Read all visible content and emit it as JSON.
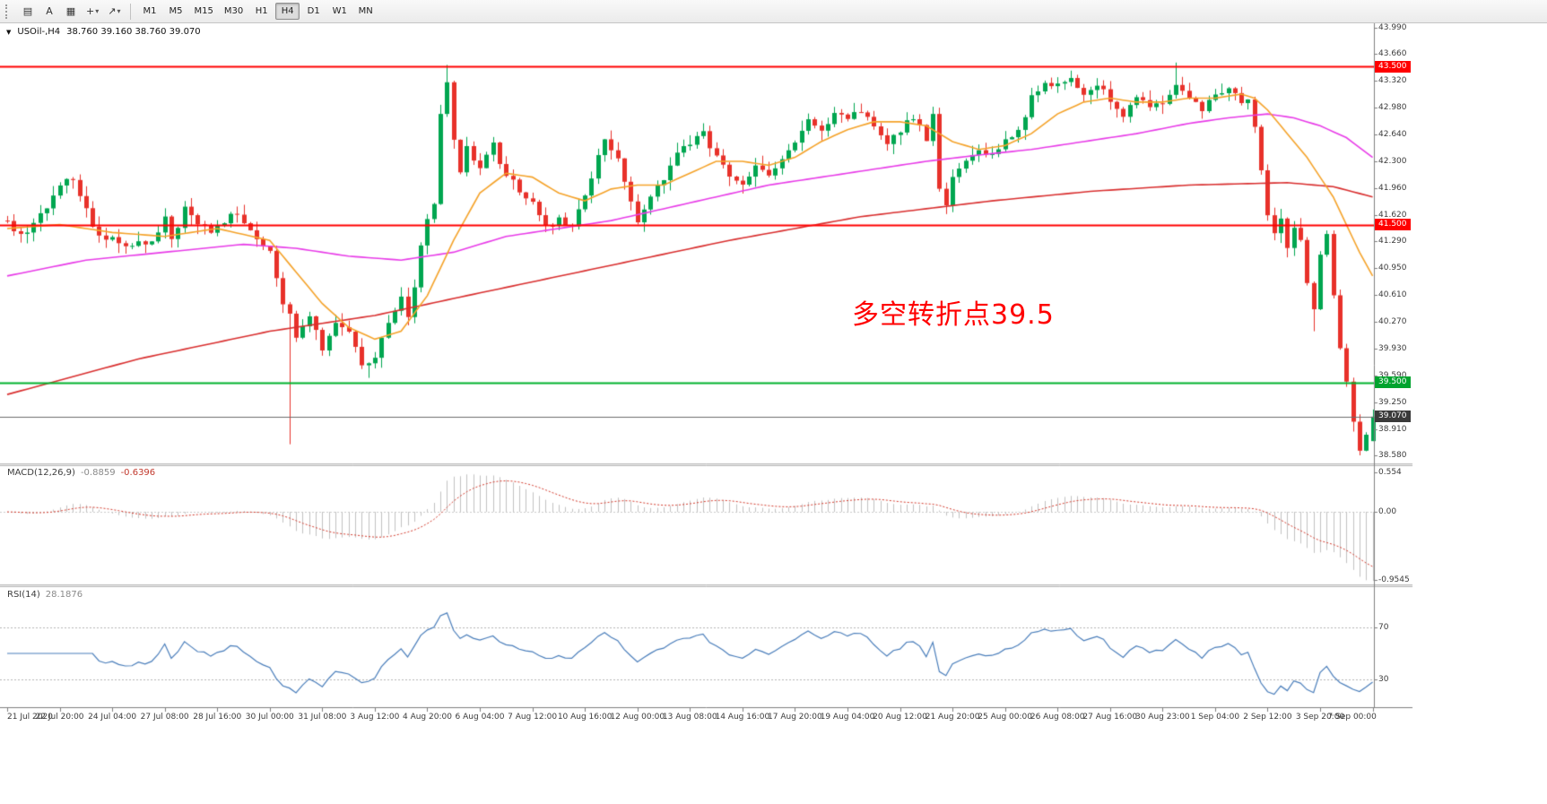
{
  "toolbar": {
    "dropdown_glyph": "▾",
    "tools": [
      {
        "name": "hatch-pattern-tool",
        "glyph": "▤",
        "dropdown": false
      },
      {
        "name": "text-tool",
        "glyph": "A",
        "dropdown": false
      },
      {
        "name": "object-list-tool",
        "glyph": "▦",
        "dropdown": false
      },
      {
        "name": "crosshair-tool",
        "glyph": "+",
        "dropdown": true
      },
      {
        "name": "trendline-tool",
        "glyph": "↗",
        "dropdown": true
      }
    ],
    "timeframes": [
      {
        "label": "M1",
        "active": false
      },
      {
        "label": "M5",
        "active": false
      },
      {
        "label": "M15",
        "active": false
      },
      {
        "label": "M30",
        "active": false
      },
      {
        "label": "H1",
        "active": false
      },
      {
        "label": "H4",
        "active": true
      },
      {
        "label": "D1",
        "active": false
      },
      {
        "label": "W1",
        "active": false
      },
      {
        "label": "MN",
        "active": false
      }
    ]
  },
  "chart": {
    "collapse_glyph": "▼",
    "symbol_title": "USOil-,H4",
    "ohlc_text": "38.760 39.160 38.760 39.070",
    "annotation": "多空转折点39.5",
    "levels": {
      "res": "43.500",
      "mid": "41.500",
      "sup": "39.500",
      "current": "39.070"
    }
  },
  "price_axis": [
    "43.990",
    "43.660",
    "43.320",
    "42.980",
    "42.640",
    "42.300",
    "41.960",
    "41.620",
    "41.290",
    "40.950",
    "40.610",
    "40.270",
    "39.930",
    "39.590",
    "39.250",
    "38.910",
    "38.580"
  ],
  "time_axis": [
    "21 Jul 2020",
    "22 Jul 20:00",
    "24 Jul 04:00",
    "27 Jul 08:00",
    "28 Jul 16:00",
    "30 Jul 00:00",
    "31 Jul 08:00",
    "3 Aug 12:00",
    "4 Aug 20:00",
    "6 Aug 04:00",
    "7 Aug 12:00",
    "10 Aug 16:00",
    "12 Aug 00:00",
    "13 Aug 08:00",
    "14 Aug 16:00",
    "17 Aug 20:00",
    "19 Aug 04:00",
    "20 Aug 12:00",
    "21 Aug 20:00",
    "25 Aug 00:00",
    "26 Aug 08:00",
    "27 Aug 16:00",
    "30 Aug 23:00",
    "1 Sep 04:00",
    "2 Sep 12:00",
    "3 Sep 20:00",
    "7 Sep 00:00"
  ],
  "macd": {
    "label": "MACD(12,26,9)",
    "value_main": "-0.8859",
    "value_signal": "-0.6396",
    "axis": [
      "0.554",
      "0.00",
      "-0.9545"
    ]
  },
  "rsi": {
    "label": "RSI(14)",
    "value": "28.1876",
    "levels": [
      "70",
      "30"
    ]
  },
  "colors": {
    "up": "#00a650",
    "down": "#e8312a",
    "ma_red": "#d92f2f",
    "ma_magenta": "#e83ce8",
    "ma_orange": "#f5a32a",
    "macd_hist": "#c2c2c2",
    "macd_signal": "#d43a2c",
    "rsi": "#4a7ebb",
    "level_dotted": "#b5b5b5",
    "hline_red": "#ff0000",
    "hline_green": "#00b22d",
    "current_price_line": "#6b6b6b"
  },
  "chart_data": {
    "type": "candlestick",
    "symbol": "USOil",
    "timeframe": "H4",
    "candles_count": 209,
    "x_tick_interval_candles": 8,
    "price_axis_range": [
      38.58,
      43.99
    ],
    "last_candle": {
      "o": 38.76,
      "h": 39.16,
      "l": 38.76,
      "c": 39.07
    },
    "price_path": [
      [
        0,
        41.55
      ],
      [
        2,
        41.35
      ],
      [
        4,
        41.5
      ],
      [
        6,
        41.7
      ],
      [
        8,
        42.0
      ],
      [
        10,
        42.1
      ],
      [
        11,
        41.9
      ],
      [
        13,
        41.5
      ],
      [
        15,
        41.3
      ],
      [
        16,
        41.35
      ],
      [
        18,
        41.2
      ],
      [
        20,
        41.3
      ],
      [
        22,
        41.25
      ],
      [
        24,
        41.6
      ],
      [
        25,
        41.3
      ],
      [
        27,
        41.7
      ],
      [
        29,
        41.5
      ],
      [
        31,
        41.4
      ],
      [
        33,
        41.55
      ],
      [
        35,
        41.65
      ],
      [
        37,
        41.4
      ],
      [
        39,
        41.2
      ],
      [
        40,
        41.15
      ],
      [
        42,
        40.5
      ],
      [
        43,
        40.35
      ],
      [
        44,
        40.05
      ],
      [
        46,
        40.3
      ],
      [
        48,
        39.95
      ],
      [
        50,
        40.3
      ],
      [
        52,
        40.1
      ],
      [
        54,
        39.75
      ],
      [
        56,
        39.8
      ],
      [
        58,
        40.25
      ],
      [
        60,
        40.55
      ],
      [
        61,
        40.3
      ],
      [
        63,
        41.2
      ],
      [
        64,
        41.55
      ],
      [
        65,
        41.8
      ],
      [
        66,
        42.9
      ],
      [
        67,
        43.3
      ],
      [
        68,
        42.6
      ],
      [
        69,
        42.2
      ],
      [
        70,
        42.45
      ],
      [
        72,
        42.25
      ],
      [
        74,
        42.5
      ],
      [
        76,
        42.1
      ],
      [
        78,
        41.95
      ],
      [
        80,
        41.75
      ],
      [
        82,
        41.45
      ],
      [
        84,
        41.6
      ],
      [
        86,
        41.45
      ],
      [
        88,
        41.9
      ],
      [
        90,
        42.35
      ],
      [
        91,
        42.6
      ],
      [
        93,
        42.3
      ],
      [
        95,
        41.75
      ],
      [
        96,
        41.55
      ],
      [
        98,
        41.85
      ],
      [
        100,
        42.1
      ],
      [
        102,
        42.4
      ],
      [
        104,
        42.5
      ],
      [
        106,
        42.65
      ],
      [
        108,
        42.35
      ],
      [
        110,
        42.15
      ],
      [
        112,
        42.05
      ],
      [
        114,
        42.25
      ],
      [
        116,
        42.1
      ],
      [
        118,
        42.3
      ],
      [
        120,
        42.55
      ],
      [
        122,
        42.8
      ],
      [
        124,
        42.7
      ],
      [
        126,
        42.9
      ],
      [
        128,
        42.85
      ],
      [
        130,
        42.95
      ],
      [
        132,
        42.7
      ],
      [
        134,
        42.55
      ],
      [
        136,
        42.7
      ],
      [
        138,
        42.85
      ],
      [
        140,
        42.6
      ],
      [
        141,
        42.9
      ],
      [
        142,
        41.95
      ],
      [
        143,
        41.7
      ],
      [
        144,
        42.1
      ],
      [
        146,
        42.3
      ],
      [
        148,
        42.45
      ],
      [
        150,
        42.35
      ],
      [
        152,
        42.55
      ],
      [
        154,
        42.7
      ],
      [
        156,
        43.1
      ],
      [
        158,
        43.3
      ],
      [
        160,
        43.25
      ],
      [
        162,
        43.35
      ],
      [
        164,
        43.1
      ],
      [
        166,
        43.3
      ],
      [
        168,
        43.05
      ],
      [
        170,
        42.9
      ],
      [
        172,
        43.1
      ],
      [
        174,
        43.0
      ],
      [
        176,
        43.05
      ],
      [
        178,
        43.3
      ],
      [
        180,
        43.1
      ],
      [
        182,
        42.95
      ],
      [
        184,
        43.15
      ],
      [
        186,
        43.25
      ],
      [
        188,
        43.05
      ],
      [
        189,
        43.1
      ],
      [
        190,
        42.75
      ],
      [
        191,
        42.2
      ],
      [
        192,
        41.6
      ],
      [
        193,
        41.35
      ],
      [
        194,
        41.55
      ],
      [
        195,
        41.2
      ],
      [
        196,
        41.45
      ],
      [
        197,
        41.3
      ],
      [
        198,
        40.75
      ],
      [
        199,
        40.45
      ],
      [
        200,
        41.15
      ],
      [
        201,
        41.35
      ],
      [
        202,
        40.6
      ],
      [
        203,
        39.95
      ],
      [
        204,
        39.5
      ],
      [
        205,
        39.0
      ],
      [
        206,
        38.65
      ],
      [
        207,
        38.8
      ],
      [
        208,
        39.07
      ]
    ],
    "overrides": {
      "43": {
        "l": 38.72
      },
      "55": {
        "l": 39.56
      },
      "67": {
        "h": 43.52
      },
      "178": {
        "h": 43.55
      },
      "199": {
        "l": 40.15
      },
      "206": {
        "l": 38.58
      },
      "208": {
        "o": 38.76,
        "h": 39.16,
        "l": 38.76,
        "c": 39.07
      }
    },
    "ma_red": [
      [
        0,
        39.35
      ],
      [
        20,
        39.8
      ],
      [
        40,
        40.15
      ],
      [
        56,
        40.35
      ],
      [
        70,
        40.6
      ],
      [
        90,
        40.95
      ],
      [
        110,
        41.3
      ],
      [
        130,
        41.6
      ],
      [
        150,
        41.8
      ],
      [
        165,
        41.92
      ],
      [
        180,
        42.0
      ],
      [
        195,
        42.03
      ],
      [
        202,
        41.98
      ],
      [
        208,
        41.85
      ]
    ],
    "ma_magenta": [
      [
        0,
        40.85
      ],
      [
        12,
        41.05
      ],
      [
        24,
        41.15
      ],
      [
        36,
        41.25
      ],
      [
        44,
        41.2
      ],
      [
        52,
        41.1
      ],
      [
        60,
        41.05
      ],
      [
        68,
        41.15
      ],
      [
        76,
        41.35
      ],
      [
        84,
        41.45
      ],
      [
        92,
        41.55
      ],
      [
        100,
        41.7
      ],
      [
        108,
        41.85
      ],
      [
        116,
        42.0
      ],
      [
        124,
        42.1
      ],
      [
        132,
        42.2
      ],
      [
        140,
        42.3
      ],
      [
        148,
        42.38
      ],
      [
        156,
        42.45
      ],
      [
        164,
        42.55
      ],
      [
        172,
        42.65
      ],
      [
        180,
        42.78
      ],
      [
        186,
        42.85
      ],
      [
        192,
        42.9
      ],
      [
        196,
        42.85
      ],
      [
        200,
        42.75
      ],
      [
        204,
        42.6
      ],
      [
        208,
        42.35
      ]
    ],
    "ma_orange": [
      [
        0,
        41.45
      ],
      [
        8,
        41.5
      ],
      [
        16,
        41.4
      ],
      [
        24,
        41.35
      ],
      [
        32,
        41.45
      ],
      [
        40,
        41.3
      ],
      [
        44,
        40.9
      ],
      [
        48,
        40.5
      ],
      [
        52,
        40.2
      ],
      [
        56,
        40.05
      ],
      [
        60,
        40.15
      ],
      [
        64,
        40.6
      ],
      [
        68,
        41.3
      ],
      [
        72,
        41.9
      ],
      [
        76,
        42.15
      ],
      [
        80,
        42.1
      ],
      [
        84,
        41.9
      ],
      [
        88,
        41.8
      ],
      [
        92,
        41.95
      ],
      [
        96,
        42.0
      ],
      [
        100,
        42.0
      ],
      [
        104,
        42.15
      ],
      [
        108,
        42.3
      ],
      [
        112,
        42.3
      ],
      [
        116,
        42.25
      ],
      [
        120,
        42.35
      ],
      [
        124,
        42.55
      ],
      [
        128,
        42.7
      ],
      [
        132,
        42.8
      ],
      [
        136,
        42.8
      ],
      [
        140,
        42.75
      ],
      [
        144,
        42.55
      ],
      [
        148,
        42.45
      ],
      [
        152,
        42.5
      ],
      [
        156,
        42.65
      ],
      [
        160,
        42.9
      ],
      [
        164,
        43.05
      ],
      [
        168,
        43.1
      ],
      [
        172,
        43.05
      ],
      [
        176,
        43.05
      ],
      [
        180,
        43.1
      ],
      [
        184,
        43.1
      ],
      [
        188,
        43.15
      ],
      [
        190,
        43.1
      ],
      [
        192,
        42.95
      ],
      [
        194,
        42.75
      ],
      [
        196,
        42.55
      ],
      [
        198,
        42.35
      ],
      [
        200,
        42.1
      ],
      [
        202,
        41.85
      ],
      [
        204,
        41.5
      ],
      [
        206,
        41.15
      ],
      [
        208,
        40.85
      ]
    ],
    "horizontal_lines": [
      {
        "price": 43.5,
        "color": "#ff0000",
        "width": 2
      },
      {
        "price": 41.5,
        "color": "#ff0000",
        "width": 2
      },
      {
        "price": 39.5,
        "color": "#00b22d",
        "width": 2
      },
      {
        "price": 39.07,
        "color": "#6b6b6b",
        "width": 1
      }
    ],
    "macd_axis": [
      0.554,
      0,
      -0.9545
    ],
    "rsi_levels": [
      70,
      30
    ]
  }
}
